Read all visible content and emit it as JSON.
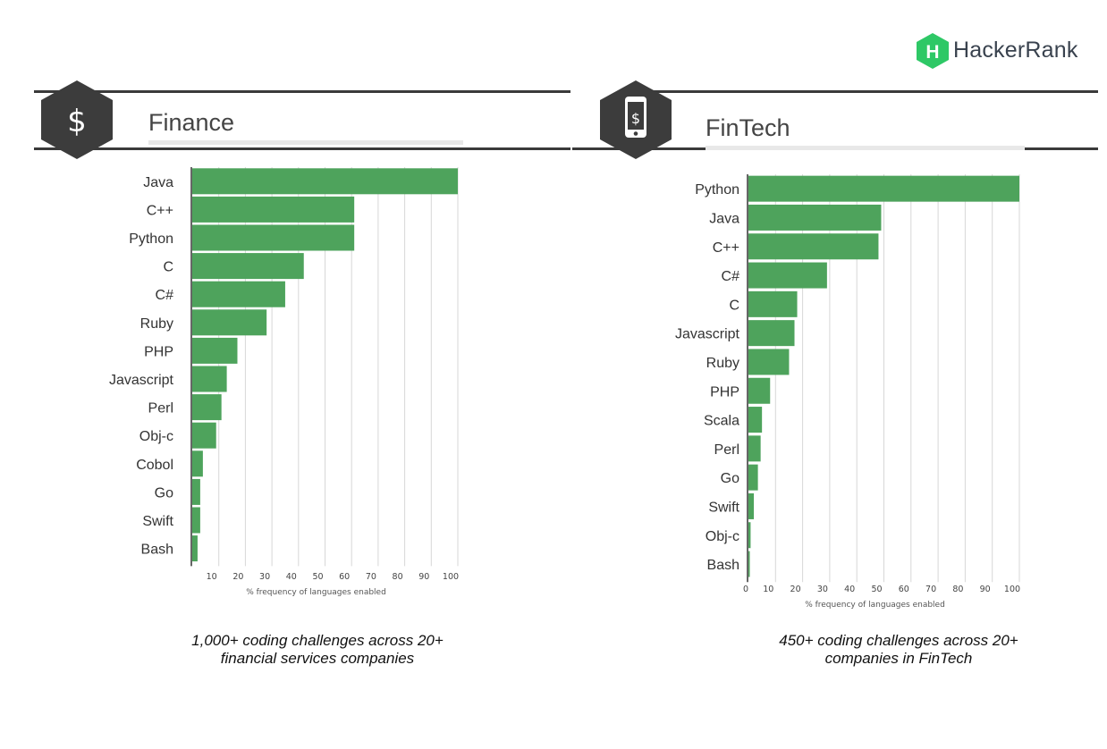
{
  "brand": {
    "name": "HackerRank",
    "mark": "H",
    "color": "#2ec866"
  },
  "colors": {
    "bar": "#4ea35c",
    "grid": "#d7d7d7",
    "axis": "#333333",
    "hex": "#3c3c3c"
  },
  "sections": [
    {
      "title": "Finance",
      "icon": "dollar-hexagon-icon",
      "caption_lines": [
        "1,000+ coding challenges across 20+",
        "financial services companies"
      ]
    },
    {
      "title": "FinTech",
      "icon": "mobile-dollar-hexagon-icon",
      "caption_lines": [
        "450+ coding  challenges across 20+",
        "companies in FinTech"
      ]
    }
  ],
  "chart_data": [
    {
      "type": "bar",
      "orientation": "horizontal",
      "title": "Finance",
      "categories": [
        "Java",
        "C++",
        "Python",
        "C",
        "C#",
        "Ruby",
        "PHP",
        "Javascript",
        "Perl",
        "Obj-c",
        "Cobol",
        "Go",
        "Swift",
        "Bash"
      ],
      "values": [
        100,
        61,
        61,
        42,
        35,
        28,
        17,
        13,
        11,
        9,
        4,
        3,
        3,
        2
      ],
      "xlabel": "% frequency of languages enabled",
      "xticks": [
        10,
        20,
        30,
        40,
        50,
        60,
        70,
        80,
        90,
        100
      ],
      "xlim": [
        0,
        100
      ],
      "grid": true
    },
    {
      "type": "bar",
      "orientation": "horizontal",
      "title": "FinTech",
      "categories": [
        "Python",
        "Java",
        "C++",
        "C#",
        "C",
        "Javascript",
        "Ruby",
        "PHP",
        "Scala",
        "Perl",
        "Go",
        "Swift",
        "Obj-c",
        "Bash"
      ],
      "values": [
        100,
        49,
        48,
        29,
        18,
        17,
        15,
        8,
        5,
        4.5,
        3.5,
        2,
        0.8,
        0.5
      ],
      "xlabel": "% frequency of languages enabled",
      "xticks": [
        0,
        10,
        20,
        30,
        40,
        50,
        60,
        70,
        80,
        90,
        100
      ],
      "xlim": [
        0,
        100
      ],
      "grid": true
    }
  ]
}
